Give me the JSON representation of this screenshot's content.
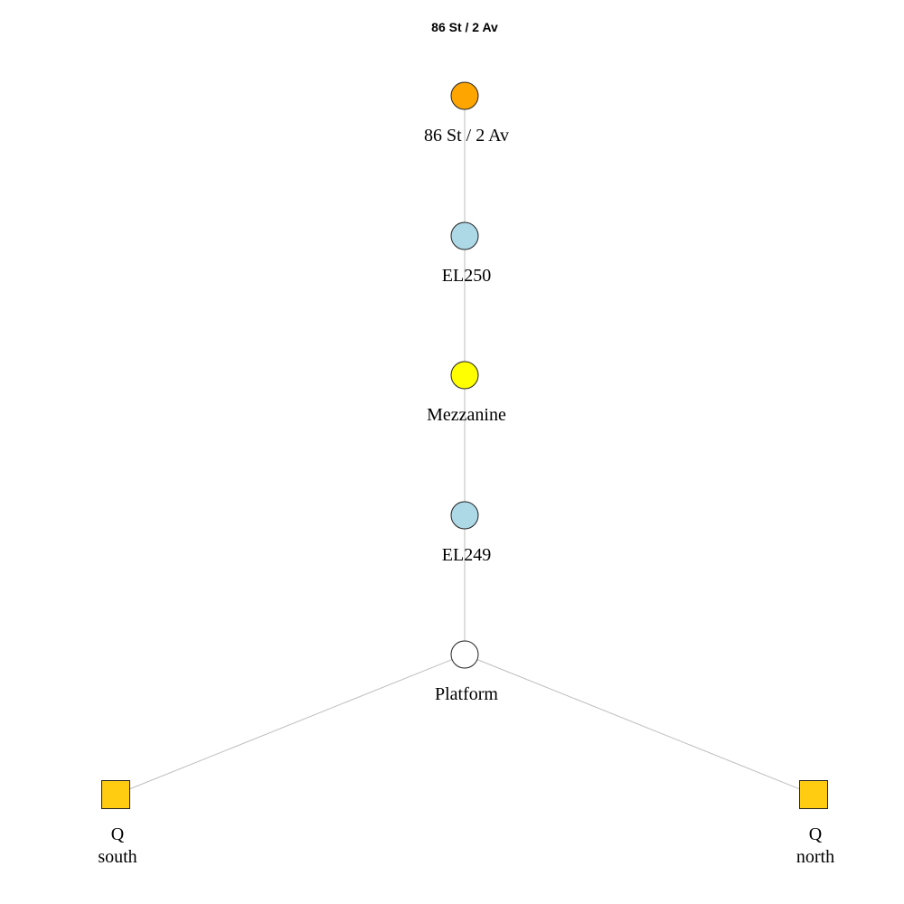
{
  "title": "86 St / 2 Av",
  "colors": {
    "background": "#ffffff",
    "edge": "#bdbdbd",
    "node_stroke": "#222222",
    "station": "#ffa500",
    "elevator": "#add8e6",
    "mezzanine": "#ffff00",
    "platform": "#ffffff",
    "train": "#ffcc11"
  },
  "nodes": [
    {
      "id": "station",
      "kind": "station",
      "shape": "circle",
      "label_lines": [
        "86 St / 2 Av"
      ]
    },
    {
      "id": "el250",
      "kind": "elevator",
      "shape": "circle",
      "label_lines": [
        "EL250"
      ]
    },
    {
      "id": "mezzanine",
      "kind": "mezzanine",
      "shape": "circle",
      "label_lines": [
        "Mezzanine"
      ]
    },
    {
      "id": "el249",
      "kind": "elevator",
      "shape": "circle",
      "label_lines": [
        "EL249"
      ]
    },
    {
      "id": "platform",
      "kind": "platform",
      "shape": "circle",
      "label_lines": [
        "Platform"
      ]
    },
    {
      "id": "q-south",
      "kind": "train",
      "shape": "square",
      "label_lines": [
        "Q",
        "south"
      ]
    },
    {
      "id": "q-north",
      "kind": "train",
      "shape": "square",
      "label_lines": [
        "Q",
        "north"
      ]
    }
  ],
  "edges": [
    {
      "from": "station",
      "to": "el250"
    },
    {
      "from": "el250",
      "to": "mezzanine"
    },
    {
      "from": "mezzanine",
      "to": "el249"
    },
    {
      "from": "el249",
      "to": "platform"
    },
    {
      "from": "platform",
      "to": "q-south"
    },
    {
      "from": "platform",
      "to": "q-north"
    }
  ]
}
